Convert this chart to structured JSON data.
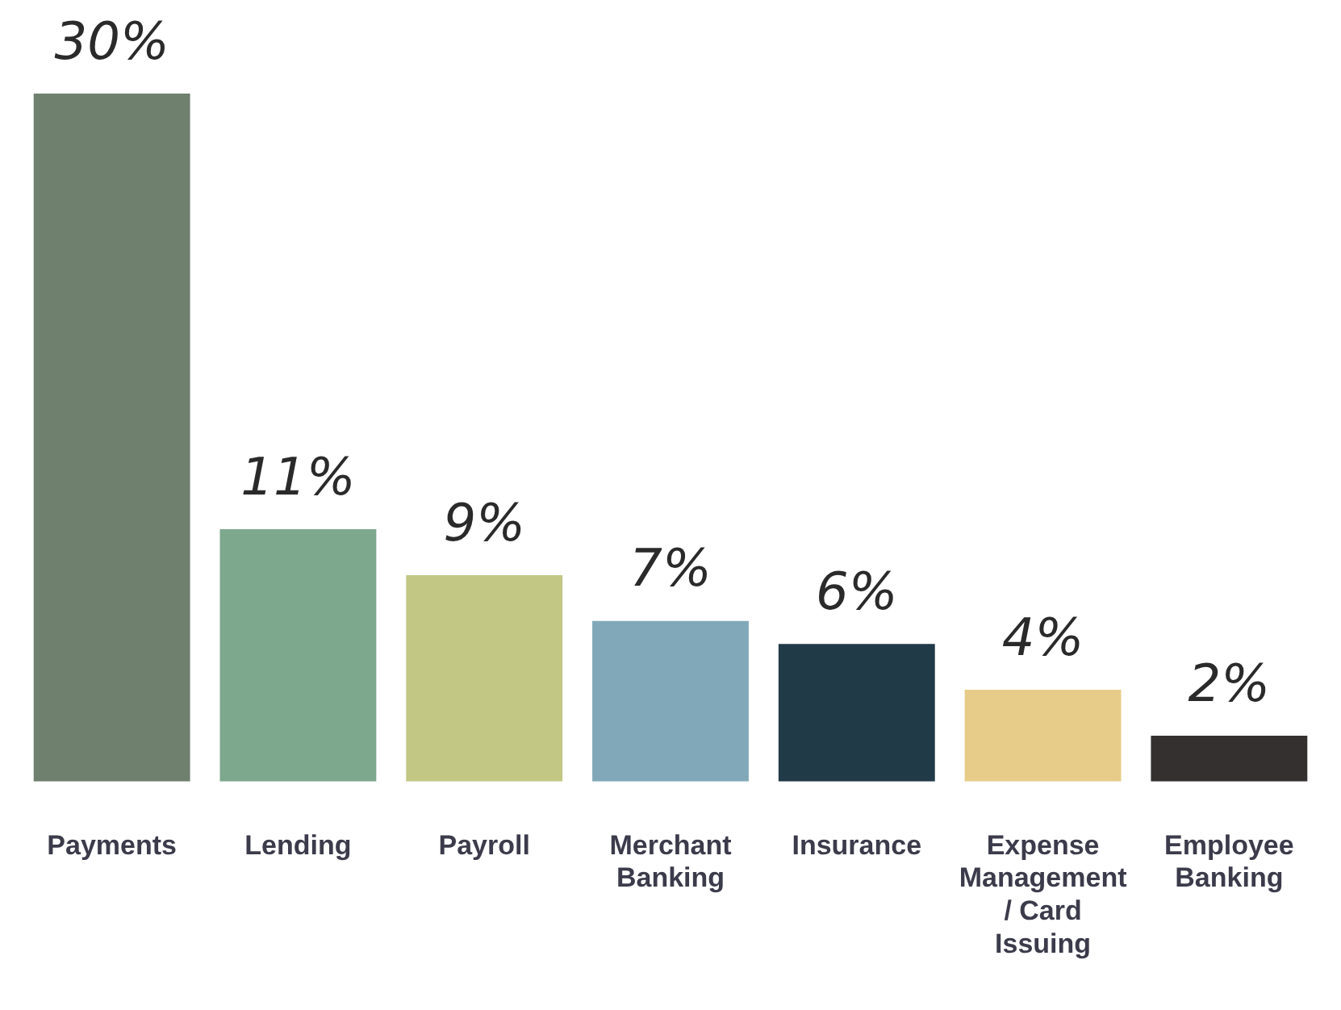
{
  "chart_data": {
    "type": "bar",
    "categories": [
      "Payments",
      "Lending",
      "Payroll",
      "Merchant Banking",
      "Insurance",
      "Expense Management / Card Issuing",
      "Employee Banking"
    ],
    "values": [
      30,
      11,
      9,
      7,
      6,
      4,
      2
    ],
    "colors": [
      "#6f806f",
      "#7ea88e",
      "#c2c884",
      "#80a8b8",
      "#213a48",
      "#e6cc88",
      "#343030"
    ],
    "value_labels": [
      "30%",
      "11%",
      "9%",
      "7%",
      "6%",
      "4%",
      "2%"
    ],
    "grid": false,
    "legend": false
  }
}
